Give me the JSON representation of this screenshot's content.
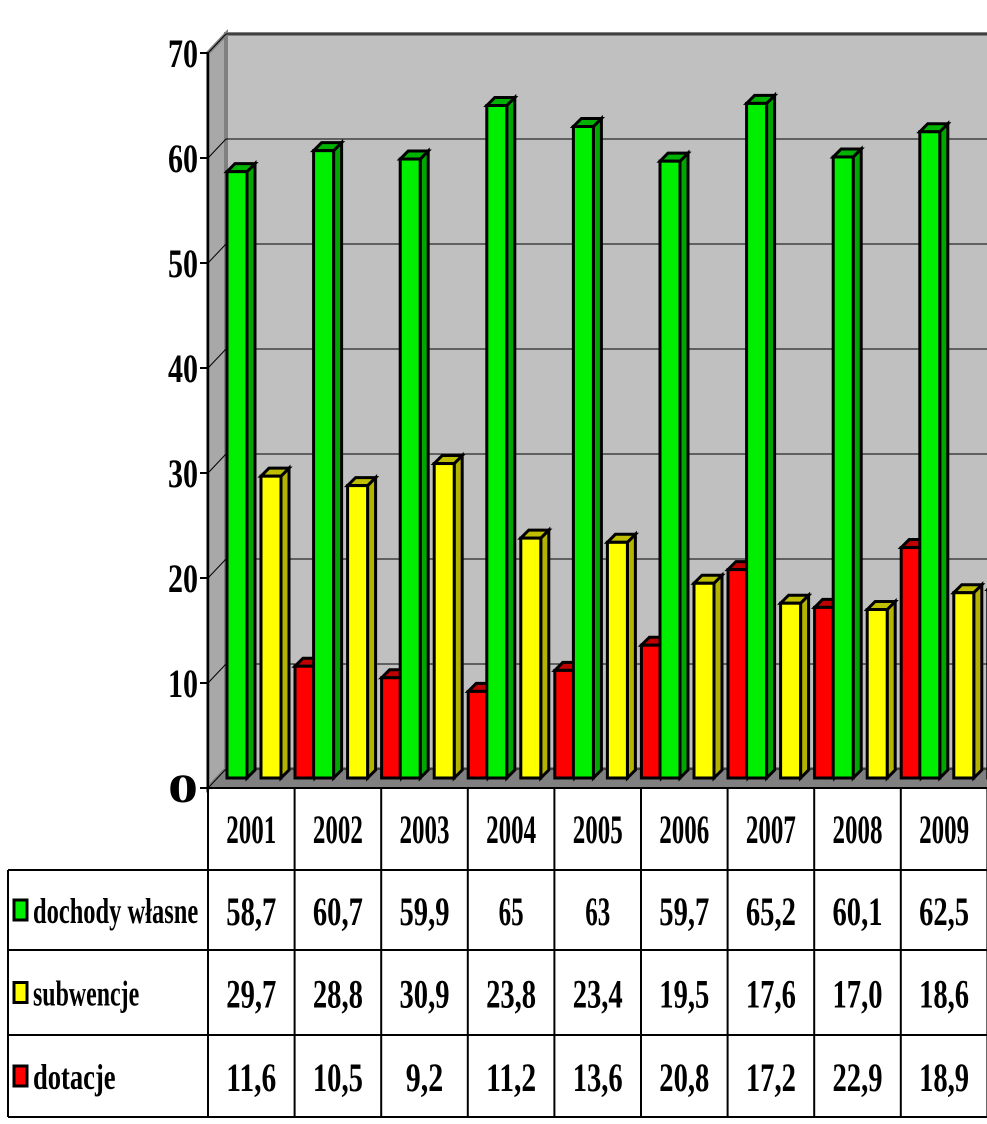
{
  "chart_data": {
    "type": "bar",
    "title": "",
    "xlabel": "",
    "ylabel": "",
    "ylim": [
      0,
      70
    ],
    "yticks": [
      "0",
      "10",
      "20",
      "30",
      "40",
      "50",
      "60",
      "70"
    ],
    "grid": true,
    "legend": "table-left",
    "categories": [
      "2001",
      "2002",
      "2003",
      "2004",
      "2005",
      "2006",
      "2007",
      "2008",
      "2009"
    ],
    "series": [
      {
        "name": "dochody własne",
        "color": "#00ee00",
        "values": [
          58.7,
          60.7,
          59.9,
          65,
          63,
          59.7,
          65.2,
          60.1,
          62.5
        ],
        "labels": [
          "58,7",
          "60,7",
          "59,9",
          "65",
          "63",
          "59,7",
          "65,2",
          "60,1",
          "62,5"
        ]
      },
      {
        "name": "subwencje",
        "color": "#ffff00",
        "values": [
          29.7,
          28.8,
          30.9,
          23.8,
          23.4,
          19.5,
          17.6,
          17.0,
          18.6
        ],
        "labels": [
          "29,7",
          "28,8",
          "30,9",
          "23,8",
          "23,4",
          "19,5",
          "17,6",
          "17,0",
          "18,6"
        ]
      },
      {
        "name": "dotacje",
        "color": "#ff0000",
        "values": [
          11.6,
          10.5,
          9.2,
          11.2,
          13.6,
          20.8,
          17.2,
          22.9,
          18.9
        ],
        "labels": [
          "11,6",
          "10,5",
          "9,2",
          "11,2",
          "13,6",
          "20,8",
          "17,2",
          "22,9",
          "18,9"
        ]
      }
    ],
    "colors": {
      "wall": "#c0c0c0",
      "floor": "#808080",
      "gridline": "#000000"
    }
  }
}
